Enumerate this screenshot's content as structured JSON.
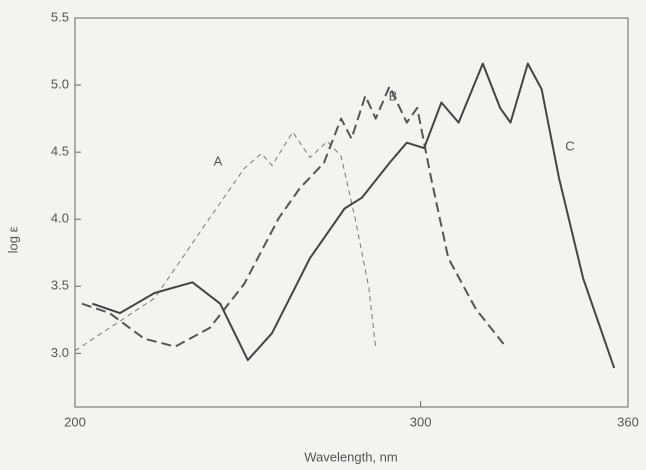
{
  "chart_data": {
    "type": "line",
    "x_label": "Wavelength, nm",
    "y_label": "log ε",
    "xlim": [
      200,
      360
    ],
    "ylim": [
      2.6,
      5.5
    ],
    "xticks": [
      200,
      300,
      360
    ],
    "yticks": [
      {
        "value": 3.0,
        "label": "3.0"
      },
      {
        "value": 3.5,
        "label": "3.5"
      },
      {
        "value": 4.0,
        "label": "4.0"
      },
      {
        "value": 4.5,
        "label": "4.5"
      },
      {
        "value": 5.0,
        "label": "5.0"
      },
      {
        "value": 5.5,
        "label": "5.5"
      }
    ],
    "series": [
      {
        "name": "A",
        "color": "#777777",
        "dash": "5,4",
        "width": 1,
        "x": [
          200,
          223,
          239,
          249,
          254,
          257,
          263,
          268,
          273,
          277,
          281,
          285,
          287
        ],
        "values": [
          3.02,
          3.41,
          4.01,
          4.38,
          4.49,
          4.4,
          4.65,
          4.46,
          4.58,
          4.47,
          4.01,
          3.49,
          3.04
        ]
      },
      {
        "name": "B",
        "color": "#555555",
        "dash": "10,5",
        "width": 2,
        "x": [
          202,
          210,
          220,
          229,
          239,
          249,
          259,
          265,
          272,
          277,
          280,
          284,
          287,
          291,
          296,
          299,
          303,
          308,
          316,
          324
        ],
        "values": [
          3.37,
          3.3,
          3.11,
          3.05,
          3.19,
          3.52,
          4.01,
          4.23,
          4.42,
          4.75,
          4.6,
          4.92,
          4.75,
          4.99,
          4.72,
          4.83,
          4.31,
          3.71,
          3.33,
          3.07
        ]
      },
      {
        "name": "C",
        "color": "#444444",
        "dash": "",
        "width": 2,
        "x": [
          205,
          213,
          223,
          234,
          242,
          250,
          257,
          268,
          278,
          283,
          291,
          296,
          301,
          306,
          311,
          318,
          323,
          326,
          331,
          335,
          340,
          347,
          356
        ],
        "values": [
          3.37,
          3.3,
          3.45,
          3.53,
          3.37,
          2.95,
          3.15,
          3.71,
          4.08,
          4.16,
          4.42,
          4.57,
          4.53,
          4.87,
          4.72,
          5.16,
          4.83,
          4.72,
          5.16,
          4.97,
          4.31,
          3.56,
          2.89
        ]
      }
    ]
  }
}
